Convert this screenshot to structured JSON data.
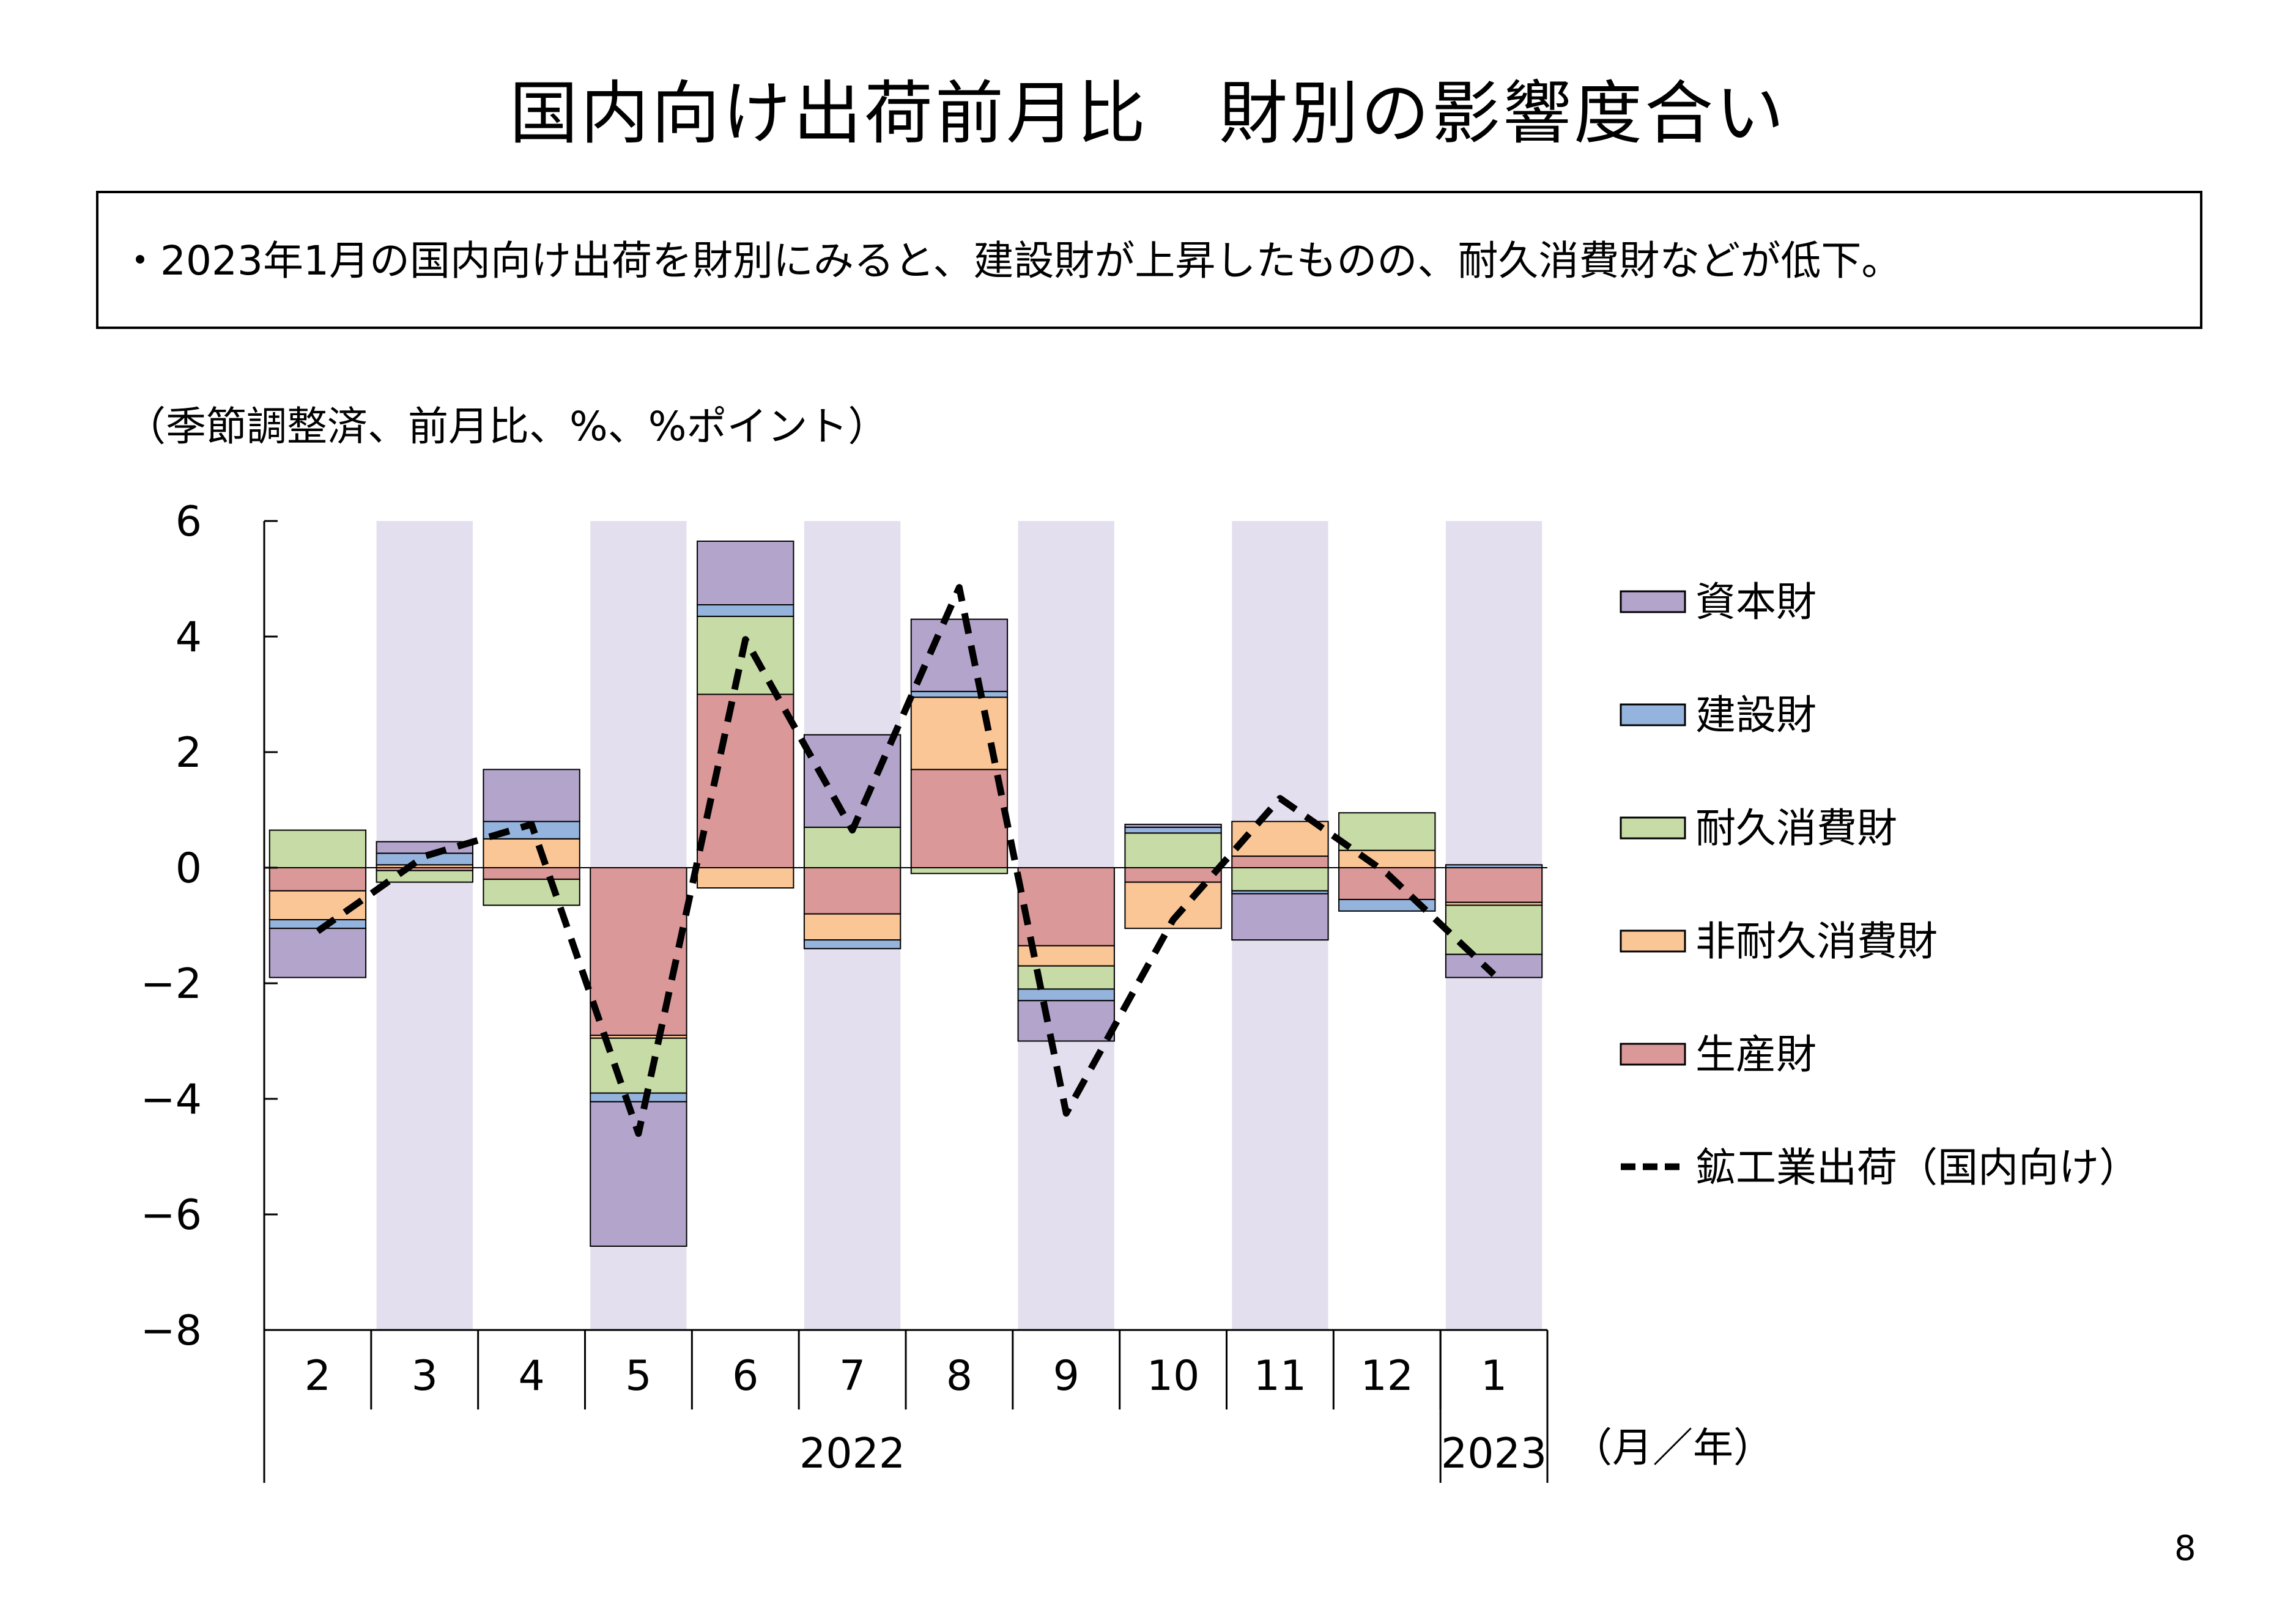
{
  "title": "国内向け出荷前月比　財別の影響度合い",
  "summary": "・2023年1月の国内向け出荷を財別にみると、建設財が上昇したものの、耐久消費財などが低下。",
  "unit_note": "（季節調整済、前月比、%、%ポイント）",
  "page_number": "8",
  "colors": {
    "capital": "#b3a4cc",
    "construction": "#95b4dd",
    "durable": "#c6dba5",
    "nondurable": "#fbc695",
    "producer": "#da9898",
    "shade": "#e4dfee",
    "line": "#000000"
  },
  "chart_data": {
    "type": "bar",
    "stacked": true,
    "categories": [
      "2",
      "3",
      "4",
      "5",
      "6",
      "7",
      "8",
      "9",
      "10",
      "11",
      "12",
      "1"
    ],
    "year_groups": [
      {
        "label": "2022",
        "span": 11
      },
      {
        "label": "2023",
        "span": 1
      }
    ],
    "x_unit_label": "（月／年）",
    "ylim": [
      -8,
      6
    ],
    "yticks": [
      6,
      4,
      2,
      0,
      -2,
      -4,
      -6,
      -8
    ],
    "ytick_labels": [
      "6",
      "4",
      "2",
      "0",
      "−2",
      "−4",
      "−6",
      "−8"
    ],
    "shaded_categories": [
      1,
      3,
      5,
      7,
      9,
      11
    ],
    "series": [
      {
        "name": "生産財",
        "key": "producer",
        "values": [
          -0.4,
          -0.05,
          -0.2,
          -2.9,
          3.0,
          -0.8,
          1.7,
          -1.35,
          -0.25,
          0.2,
          -0.55,
          -0.6
        ]
      },
      {
        "name": "非耐久消費財",
        "key": "nondurable",
        "values": [
          -0.5,
          0.05,
          0.5,
          -0.05,
          -0.35,
          -0.45,
          1.25,
          -0.35,
          -0.8,
          0.6,
          0.3,
          -0.05
        ]
      },
      {
        "name": "耐久消費財",
        "key": "durable",
        "values": [
          0.65,
          -0.2,
          -0.45,
          -0.95,
          1.35,
          0.7,
          -0.1,
          -0.4,
          0.6,
          -0.4,
          0.65,
          -0.85
        ]
      },
      {
        "name": "建設財",
        "key": "construction",
        "values": [
          -0.15,
          0.2,
          0.3,
          -0.15,
          0.2,
          -0.15,
          0.1,
          -0.2,
          0.1,
          -0.05,
          -0.2,
          0.05
        ]
      },
      {
        "name": "資本財",
        "key": "capital",
        "values": [
          -0.85,
          0.2,
          0.9,
          -2.5,
          1.1,
          1.6,
          1.25,
          -0.7,
          0.05,
          -0.8,
          0.0,
          -0.4
        ]
      }
    ],
    "line": {
      "name": "鉱工業出荷（国内向け）",
      "values": [
        -1.1,
        0.2,
        0.75,
        -4.6,
        3.95,
        0.65,
        4.85,
        -4.25,
        -0.9,
        1.2,
        -0.1,
        -1.85
      ]
    },
    "legend": [
      {
        "label": "資本財",
        "key": "capital",
        "kind": "box"
      },
      {
        "label": "建設財",
        "key": "construction",
        "kind": "box"
      },
      {
        "label": "耐久消費財",
        "key": "durable",
        "kind": "box"
      },
      {
        "label": "非耐久消費財",
        "key": "nondurable",
        "kind": "box"
      },
      {
        "label": "生産財",
        "key": "producer",
        "kind": "box"
      },
      {
        "label": "鉱工業出荷（国内向け）",
        "key": "line",
        "kind": "dash"
      }
    ],
    "legend_position": "right",
    "grid": false
  }
}
